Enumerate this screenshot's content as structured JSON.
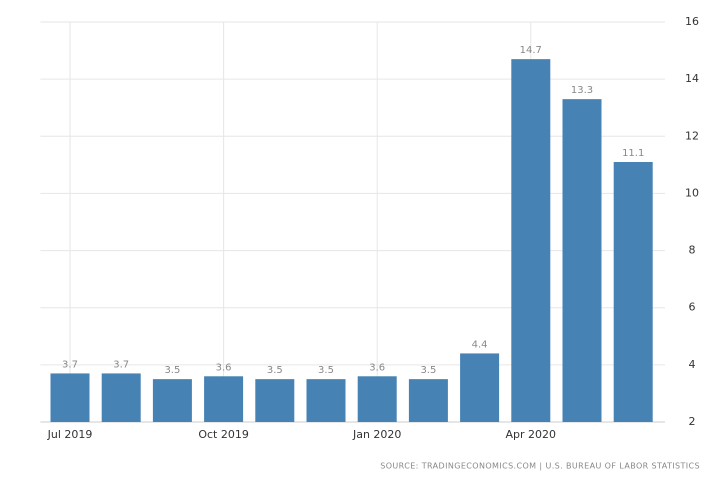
{
  "chart_data": {
    "type": "bar",
    "categories": [
      "Jul 2019",
      null,
      null,
      "Oct 2019",
      null,
      null,
      "Jan 2020",
      null,
      null,
      "Apr 2020",
      null,
      null
    ],
    "values": [
      3.7,
      3.7,
      3.5,
      3.6,
      3.5,
      3.5,
      3.6,
      3.5,
      4.4,
      14.7,
      13.3,
      11.1
    ],
    "color": "#4682b4",
    "ylim": [
      2,
      16
    ],
    "yticks": [
      2,
      4,
      6,
      8,
      10,
      12,
      14,
      16
    ],
    "grid": true,
    "source": "SOURCE: TRADINGECONOMICS.COM | U.S. BUREAU OF LABOR STATISTICS"
  }
}
